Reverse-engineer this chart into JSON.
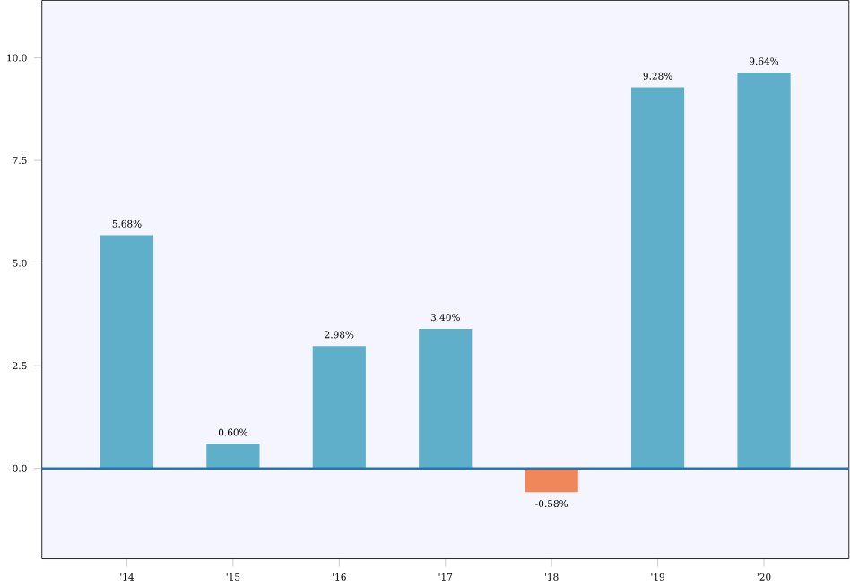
{
  "chart_data": {
    "type": "bar",
    "categories": [
      "'14",
      "'15",
      "'16",
      "'17",
      "'18",
      "'19",
      "'20"
    ],
    "values": [
      5.68,
      0.6,
      2.98,
      3.4,
      -0.58,
      9.28,
      9.64
    ],
    "colors": [
      "#5fafcb",
      "#5fafcb",
      "#5fafcb",
      "#5fafcb",
      "#f0875a",
      "#5fafcb",
      "#5fafcb"
    ],
    "value_labels": [
      "5.68%",
      "0.60%",
      "2.98%",
      "3.40%",
      "-0.58%",
      "9.28%",
      "9.64%"
    ],
    "ylim": [
      -2.2,
      11.4
    ],
    "yticks": [
      {
        "value": 0,
        "label": "0.0"
      },
      {
        "value": 2.5,
        "label": "2.5"
      },
      {
        "value": 5,
        "label": "5.0"
      },
      {
        "value": 7.5,
        "label": "7.5"
      },
      {
        "value": 10,
        "label": "10.0"
      }
    ],
    "ref_lines": [
      {
        "axis": "y",
        "value": 0,
        "color": "#1f77b4"
      }
    ],
    "grid": false
  }
}
